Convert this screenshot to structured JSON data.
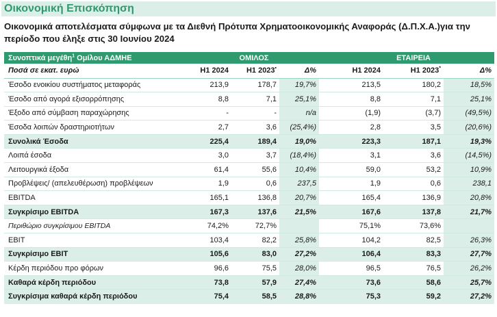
{
  "header": {
    "title": "Οικονομική Επισκόπηση",
    "subtitle": "Οικονομικά αποτελέσματα σύμφωνα με τα Διεθνή Πρότυπα Χρηματοοικονομικής Αναφοράς (Δ.Π.Χ.Α.)για την περίοδο που έληξε στις 30 Ιουνίου 2024"
  },
  "table": {
    "group_title": "Συνοπτικά μεγέθη",
    "group_title_sup": "1",
    "group_title_suffix": " Ομίλου ΑΔΜΗΕ",
    "group_label": "ΟΜΙΛΟΣ",
    "company_label": "ΕΤΑΙΡΕΙΑ",
    "units_label": "Ποσά σε εκατ. ευρώ",
    "col_h1_2024": "H1 2024",
    "col_h1_2023": "H1 2023",
    "col_h1_2023_mark_group": "•",
    "col_h1_2023_mark_company": "*",
    "col_delta": "Δ%",
    "rows": [
      {
        "label": "Έσοδο ενοικίου συστήματος μεταφοράς",
        "g24": "213,9",
        "g23": "178,7",
        "gd": "19,7%",
        "c24": "213,5",
        "c23": "180,2",
        "cd": "18,5%"
      },
      {
        "label": "Έσοδο από αγορά εξισορρόπησης",
        "g24": "8,8",
        "g23": "7,1",
        "gd": "25,1%",
        "c24": "8,8",
        "c23": "7,1",
        "cd": "25,1%"
      },
      {
        "label": "Έξοδο από σύμβαση παραχώρησης",
        "g24": "-",
        "g23": "-",
        "gd": "n/a",
        "c24": "(1,9)",
        "c23": "(3,7)",
        "cd": "(49,5%)"
      },
      {
        "label": "Έσοδα λοιπών δραστηριοτήτων",
        "g24": "2,7",
        "g23": "3,6",
        "gd": "(25,4%)",
        "c24": "2,8",
        "c23": "3,5",
        "cd": "(20,6%)"
      },
      {
        "label": "Συνολικά Έσοδα",
        "g24": "225,4",
        "g23": "189,4",
        "gd": "19,0%",
        "c24": "223,3",
        "c23": "187,1",
        "cd": "19,3%"
      },
      {
        "label": "Λοιπά έσοδα",
        "g24": "3,0",
        "g23": "3,7",
        "gd": "(18,4%)",
        "c24": "3,1",
        "c23": "3,6",
        "cd": "(14,5%)"
      },
      {
        "label": "Λειτουργικά έξοδα",
        "g24": "61,4",
        "g23": "55,6",
        "gd": "10,4%",
        "c24": "59,0",
        "c23": "53,2",
        "cd": "10,9%"
      },
      {
        "label": "Προβλέψεις/ (απελευθέρωση) προβλέψεων",
        "g24": "1,9",
        "g23": "0,6",
        "gd": "237,5",
        "c24": "1,9",
        "c23": "0,6",
        "cd": "238,1"
      },
      {
        "label": "EBITDA",
        "g24": "165,1",
        "g23": "136,8",
        "gd": "20,7%",
        "c24": "165,4",
        "c23": "136,9",
        "cd": "20,8%"
      },
      {
        "label": "Συγκρίσιμο EBITDA",
        "g24": "167,3",
        "g23": "137,6",
        "gd": "21,5%",
        "c24": "167,6",
        "c23": "137,8",
        "cd": "21,7%"
      },
      {
        "label": "Περιθώριο συγκρίσιμου EBITDA",
        "g24": "74,2%",
        "g23": "72,7%",
        "gd": "",
        "c24": "75,1%",
        "c23": "73,6%",
        "cd": ""
      },
      {
        "label": "EBIT",
        "g24": "103,4",
        "g23": "82,2",
        "gd": "25,8%",
        "c24": "104,2",
        "c23": "82,5",
        "cd": "26,3%"
      },
      {
        "label": "Συγκρίσιμο EBIT",
        "g24": "105,6",
        "g23": "83,0",
        "gd": "27,2%",
        "c24": "106,4",
        "c23": "83,3",
        "cd": "27,7%"
      },
      {
        "label": "Κέρδη περιόδου προ φόρων",
        "g24": "96,6",
        "g23": "75,5",
        "gd": "28,0%",
        "c24": "96,5",
        "c23": "76,5",
        "cd": "26,2%"
      },
      {
        "label": "Καθαρά κέρδη περιόδου",
        "g24": "73,8",
        "g23": "57,9",
        "gd": "27,4%",
        "c24": "73,6",
        "c23": "58,6",
        "cd": "25,7%"
      },
      {
        "label": "Συγκρίσιμα καθαρά κέρδη περιόδου",
        "g24": "75,4",
        "g23": "58,5",
        "gd": "28,8%",
        "c24": "75,3",
        "c23": "59,2",
        "cd": "27,2%"
      }
    ]
  }
}
